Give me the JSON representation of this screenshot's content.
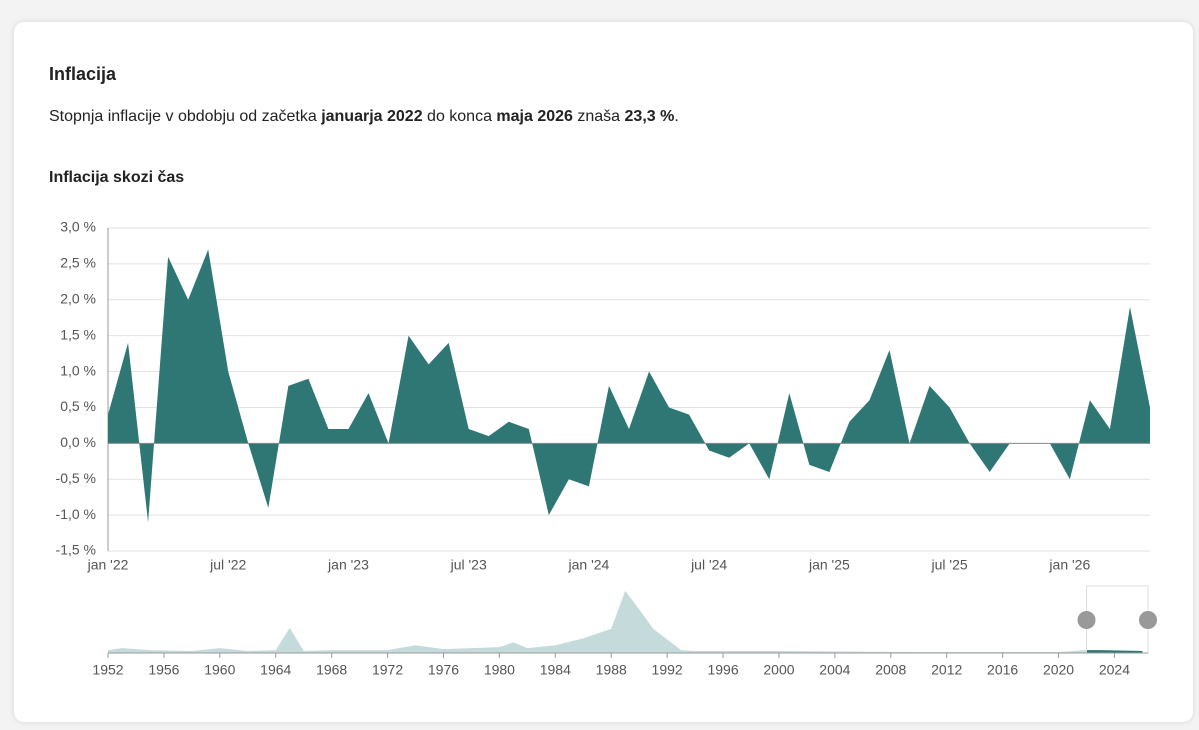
{
  "header": {
    "title": "Inflacija",
    "description": [
      "Stopnja inflacije v obdobju od začetka ",
      "januarja 2022",
      " do konca ",
      "maja 2026",
      " znaša ",
      "23,3 %",
      "."
    ]
  },
  "chart_data": [
    {
      "type": "area",
      "title": "Inflacija skozi čas",
      "categories": [
        "jan '22",
        null,
        null,
        null,
        null,
        null,
        "jul '22",
        null,
        null,
        null,
        null,
        null,
        "jan '23",
        null,
        null,
        null,
        null,
        null,
        "jul '23",
        null,
        null,
        null,
        null,
        null,
        "jan '24",
        null,
        null,
        null,
        null,
        null,
        "jul '24",
        null,
        null,
        null,
        null,
        null,
        "jan '25",
        null,
        null,
        null,
        null,
        null,
        "jul '25",
        null,
        null,
        null,
        null,
        null,
        "jan '26",
        null,
        null,
        null,
        null
      ],
      "series": [
        {
          "color": "#2e7775",
          "values": [
            0.4,
            1.4,
            -1.1,
            2.6,
            2.0,
            2.7,
            1.0,
            0.0,
            -0.9,
            0.8,
            0.9,
            0.2,
            0.2,
            0.7,
            0.0,
            1.5,
            1.1,
            1.4,
            0.2,
            0.1,
            0.3,
            0.2,
            -1.0,
            -0.5,
            -0.6,
            0.8,
            0.2,
            1.0,
            0.5,
            0.4,
            -0.1,
            -0.2,
            0.0,
            -0.5,
            0.7,
            -0.3,
            -0.4,
            0.3,
            0.6,
            1.3,
            0.0,
            0.8,
            0.5,
            0.0,
            -0.4,
            0.0,
            0.0,
            0.0,
            -0.5,
            0.6,
            0.2,
            1.9,
            0.5
          ]
        }
      ],
      "ylim": [
        -1.5,
        3.0
      ],
      "yticks": [
        {
          "value": -1.5,
          "label": "-1,5 %"
        },
        {
          "value": -1.0,
          "label": "-1,0 %"
        },
        {
          "value": -0.5,
          "label": "-0,5 %"
        },
        {
          "value": 0.0,
          "label": "0,0 %"
        },
        {
          "value": 0.5,
          "label": "0,5 %"
        },
        {
          "value": 1.0,
          "label": "1,0 %"
        },
        {
          "value": 1.5,
          "label": "1,5 %"
        },
        {
          "value": 2.0,
          "label": "2,0 %"
        },
        {
          "value": 2.5,
          "label": "2,5 %"
        },
        {
          "value": 3.0,
          "label": "3,0 %"
        }
      ],
      "grid": true
    },
    {
      "type": "navigator",
      "x": [
        1952,
        1953,
        1955,
        1958,
        1960,
        1962,
        1964,
        1965,
        1966,
        1968,
        1972,
        1974,
        1976,
        1980,
        1981,
        1982,
        1984,
        1986,
        1988,
        1989,
        1990,
        1991,
        1992,
        1993,
        1994,
        2000,
        2010,
        2020,
        2022,
        2023,
        2026
      ],
      "series": [
        {
          "color": "#c5dada",
          "values": [
            3,
            5,
            3,
            2,
            5,
            2,
            3,
            26,
            2,
            3,
            3,
            8,
            4,
            6,
            11,
            5,
            8,
            15,
            25,
            64,
            45,
            25,
            14,
            3,
            2,
            2,
            1,
            1,
            3,
            3,
            2
          ]
        }
      ],
      "selected_color": "#2e7775",
      "selection": [
        2022,
        2026.4
      ],
      "xlim": [
        1952,
        2026.4
      ],
      "ylim": [
        0,
        70
      ],
      "xticks": [
        1952,
        1956,
        1960,
        1964,
        1968,
        1972,
        1976,
        1980,
        1984,
        1988,
        1992,
        1996,
        2000,
        2004,
        2008,
        2012,
        2016,
        2020,
        2024
      ]
    }
  ]
}
